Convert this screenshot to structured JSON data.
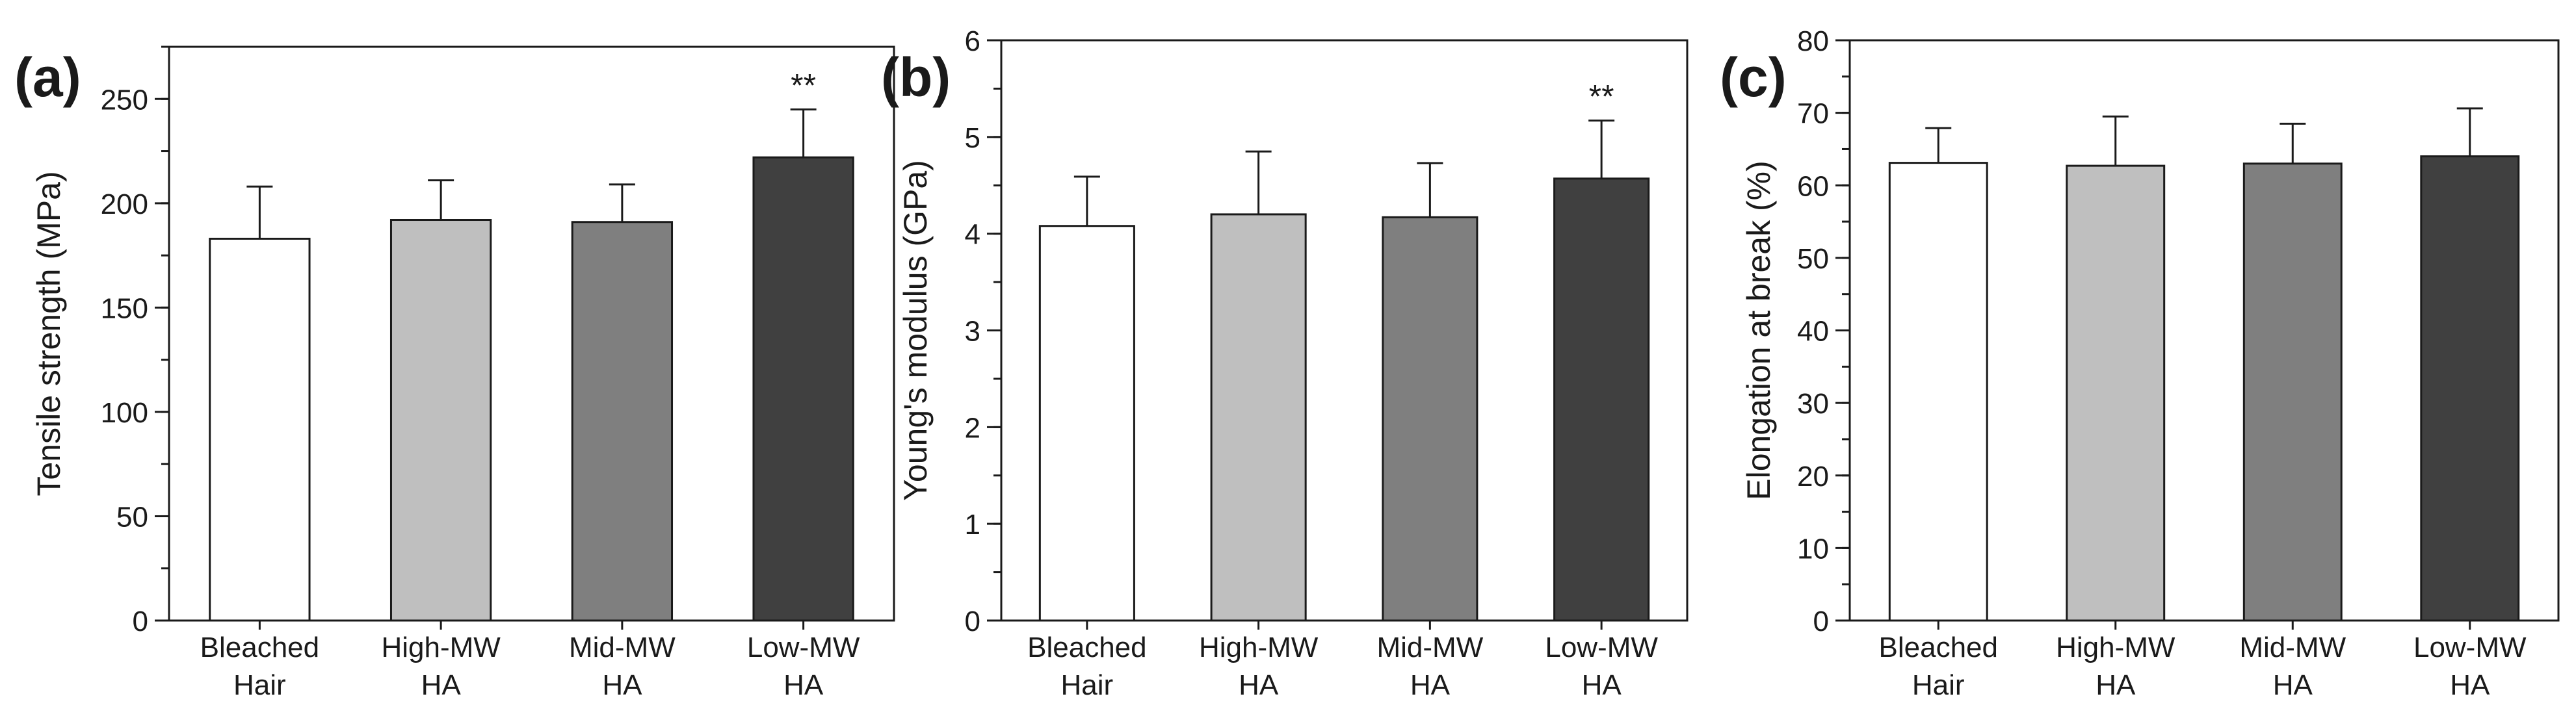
{
  "chart_data": [
    {
      "type": "bar",
      "panel_label": "(a)",
      "categories": [
        [
          "Bleached",
          "Hair"
        ],
        [
          "High-MW",
          "HA"
        ],
        [
          "Mid-MW",
          "HA"
        ],
        [
          "Low-MW",
          "HA"
        ]
      ],
      "values": [
        183,
        192,
        191,
        222
      ],
      "errors": [
        25,
        19,
        18,
        23
      ],
      "significance": [
        "",
        "",
        "",
        "**"
      ],
      "colors": [
        "#ffffff",
        "#bfbfbf",
        "#7f7f7f",
        "#404040"
      ],
      "ylabel": "Tensile strength (MPa)",
      "ylim": [
        0,
        275
      ],
      "yticks": [
        0,
        50,
        100,
        150,
        200,
        250
      ],
      "minor_step": 25,
      "grid": false
    },
    {
      "type": "bar",
      "panel_label": "(b)",
      "categories": [
        [
          "Bleached",
          "Hair"
        ],
        [
          "High-MW",
          "HA"
        ],
        [
          "Mid-MW",
          "HA"
        ],
        [
          "Low-MW",
          "HA"
        ]
      ],
      "values": [
        4.08,
        4.2,
        4.17,
        4.57
      ],
      "errors": [
        0.51,
        0.65,
        0.56,
        0.6
      ],
      "significance": [
        "",
        "",
        "",
        "**"
      ],
      "colors": [
        "#ffffff",
        "#bfbfbf",
        "#7f7f7f",
        "#404040"
      ],
      "ylabel": "Young's modulus (GPa)",
      "ylim": [
        0,
        6
      ],
      "yticks": [
        0,
        1,
        2,
        3,
        4,
        5,
        6
      ],
      "minor_step": 0.5,
      "grid": false
    },
    {
      "type": "bar",
      "panel_label": "(c)",
      "categories": [
        [
          "Bleached",
          "Hair"
        ],
        [
          "High-MW",
          "HA"
        ],
        [
          "Mid-MW",
          "HA"
        ],
        [
          "Low-MW",
          "HA"
        ]
      ],
      "values": [
        63.1,
        62.7,
        63,
        64
      ],
      "errors": [
        4.8,
        6.8,
        5.5,
        6.6
      ],
      "significance": [
        "",
        "",
        "",
        ""
      ],
      "colors": [
        "#ffffff",
        "#bfbfbf",
        "#7f7f7f",
        "#404040"
      ],
      "ylabel": "Elongation at break (%)",
      "ylim": [
        0,
        80
      ],
      "yticks": [
        0,
        10,
        20,
        30,
        40,
        50,
        60,
        70,
        80
      ],
      "minor_step": 5,
      "grid": false
    }
  ]
}
